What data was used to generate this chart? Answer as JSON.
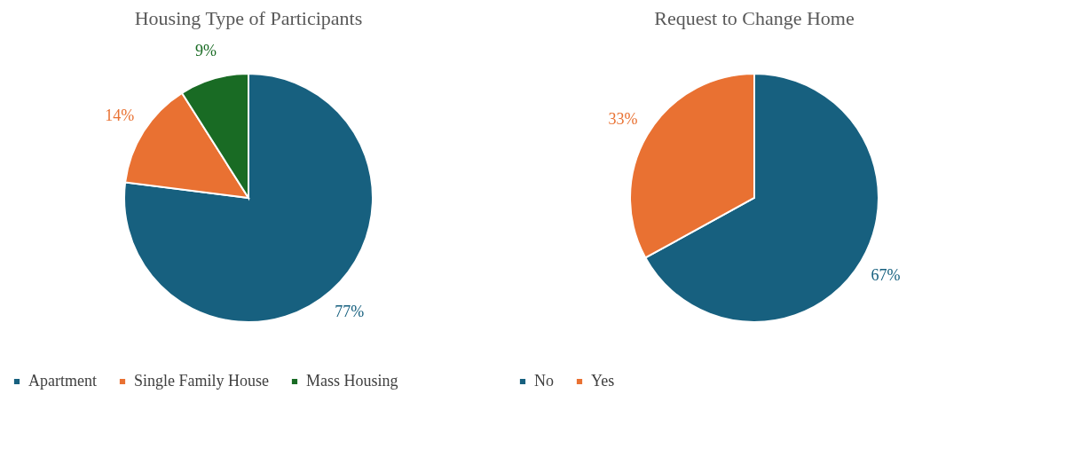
{
  "chart_data": [
    {
      "type": "pie",
      "title": "Housing Type of Participants",
      "categories": [
        "Apartment",
        "Single Family House",
        "Mass Housing"
      ],
      "values": [
        77,
        14,
        9
      ],
      "colors": [
        "#17607f",
        "#e97132",
        "#196b24"
      ],
      "value_labels": [
        "77%",
        "14%",
        "9%"
      ],
      "legend": "bottom"
    },
    {
      "type": "pie",
      "title": "Request to Change Home",
      "categories": [
        "No",
        "Yes"
      ],
      "values": [
        67,
        33
      ],
      "colors": [
        "#17607f",
        "#e97132"
      ],
      "value_labels": [
        "67%",
        "33%"
      ],
      "legend": "bottom"
    }
  ]
}
